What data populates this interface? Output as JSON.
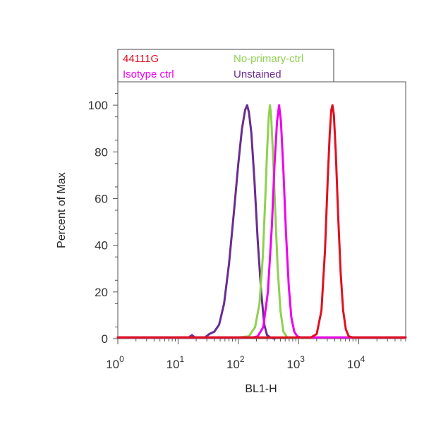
{
  "chart_data": {
    "type": "line",
    "title": "",
    "xlabel": "BL1-H",
    "ylabel": "Percent of Max",
    "x_scale": "log",
    "xlim": [
      1,
      60000
    ],
    "ylim": [
      0,
      110
    ],
    "grid": false,
    "legend_position": "top",
    "x_ticks": [
      {
        "value": 1,
        "base": "10",
        "exp": "0"
      },
      {
        "value": 10,
        "base": "10",
        "exp": "1"
      },
      {
        "value": 100,
        "base": "10",
        "exp": "2"
      },
      {
        "value": 1000,
        "base": "10",
        "exp": "3"
      },
      {
        "value": 10000,
        "base": "10",
        "exp": "4"
      }
    ],
    "y_ticks": [
      {
        "value": 0,
        "label": "0"
      },
      {
        "value": 20,
        "label": "20"
      },
      {
        "value": 40,
        "label": "40"
      },
      {
        "value": 60,
        "label": "60"
      },
      {
        "value": 80,
        "label": "80"
      },
      {
        "value": 100,
        "label": "100"
      }
    ],
    "series": [
      {
        "name": "Unstained",
        "color": "#6a2c91",
        "points": [
          [
            1,
            0.5
          ],
          [
            15,
            0.5
          ],
          [
            17,
            1.5
          ],
          [
            19,
            0.5
          ],
          [
            28,
            0.5
          ],
          [
            33,
            2
          ],
          [
            40,
            3
          ],
          [
            48,
            6
          ],
          [
            58,
            15
          ],
          [
            70,
            32
          ],
          [
            85,
            55
          ],
          [
            100,
            75
          ],
          [
            115,
            90
          ],
          [
            130,
            98
          ],
          [
            140,
            100
          ],
          [
            150,
            97
          ],
          [
            165,
            88
          ],
          [
            185,
            68
          ],
          [
            210,
            42
          ],
          [
            240,
            20
          ],
          [
            270,
            6
          ],
          [
            300,
            1.5
          ],
          [
            340,
            0.5
          ],
          [
            400,
            0
          ]
        ]
      },
      {
        "name": "No-primary-ctrl",
        "color": "#8fd14f",
        "points": [
          [
            1,
            0.5
          ],
          [
            100,
            0.5
          ],
          [
            150,
            1
          ],
          [
            190,
            5
          ],
          [
            225,
            15
          ],
          [
            255,
            35
          ],
          [
            280,
            60
          ],
          [
            300,
            80
          ],
          [
            320,
            95
          ],
          [
            335,
            100
          ],
          [
            350,
            96
          ],
          [
            375,
            80
          ],
          [
            410,
            55
          ],
          [
            450,
            30
          ],
          [
            500,
            12
          ],
          [
            560,
            3
          ],
          [
            650,
            0.5
          ],
          [
            60000,
            0.5
          ]
        ]
      },
      {
        "name": "Isotype ctrl",
        "color": "#ee00ee",
        "points": [
          [
            1,
            0.5
          ],
          [
            170,
            0.5
          ],
          [
            210,
            1
          ],
          [
            260,
            5
          ],
          [
            310,
            20
          ],
          [
            360,
            48
          ],
          [
            400,
            75
          ],
          [
            440,
            93
          ],
          [
            475,
            100
          ],
          [
            510,
            93
          ],
          [
            560,
            72
          ],
          [
            620,
            45
          ],
          [
            690,
            22
          ],
          [
            760,
            9
          ],
          [
            850,
            3
          ],
          [
            950,
            1
          ],
          [
            1100,
            0.5
          ],
          [
            60000,
            0.5
          ]
        ]
      },
      {
        "name": "44111G",
        "color": "#e01020",
        "points": [
          [
            1,
            0.5
          ],
          [
            1600,
            0.5
          ],
          [
            2000,
            2
          ],
          [
            2400,
            12
          ],
          [
            2750,
            38
          ],
          [
            3050,
            68
          ],
          [
            3300,
            88
          ],
          [
            3500,
            98
          ],
          [
            3650,
            100
          ],
          [
            3850,
            96
          ],
          [
            4150,
            80
          ],
          [
            4550,
            52
          ],
          [
            5000,
            28
          ],
          [
            5500,
            12
          ],
          [
            6100,
            4
          ],
          [
            6800,
            1
          ],
          [
            8000,
            0.5
          ],
          [
            60000,
            0.5
          ]
        ]
      }
    ]
  },
  "legend": {
    "items": [
      {
        "label": "44111G",
        "color": "#e01020"
      },
      {
        "label": "No-primary-ctrl",
        "color": "#8fd14f"
      },
      {
        "label": "Isotype ctrl",
        "color": "#ee00ee"
      },
      {
        "label": "Unstained",
        "color": "#6a2c91"
      }
    ]
  }
}
